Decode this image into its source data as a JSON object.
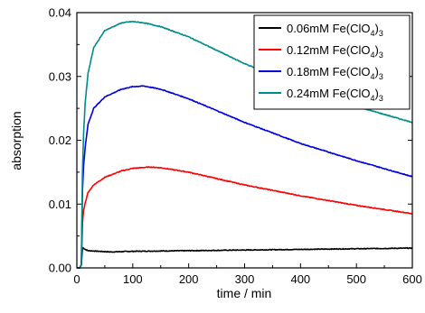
{
  "chart_data": {
    "type": "line",
    "title": "",
    "xlabel": "time / min",
    "ylabel": "absorption",
    "xlim": [
      0,
      600
    ],
    "ylim": [
      0,
      0.04
    ],
    "x_ticks": [
      0,
      100,
      200,
      300,
      400,
      500,
      600
    ],
    "x_tick_labels": [
      "0",
      "100",
      "200",
      "300",
      "400",
      "500",
      "600"
    ],
    "y_ticks": [
      0,
      0.01,
      0.02,
      0.03,
      0.04
    ],
    "y_tick_labels": [
      "0.00",
      "0.01",
      "0.02",
      "0.03",
      "0.04"
    ],
    "grid": false,
    "legend_position": "top-right",
    "series": [
      {
        "name": "0.06mM Fe(ClO4)3",
        "legend_main": "0.06mM Fe(ClO",
        "legend_sub1": "4",
        "legend_mid": ")",
        "legend_sub2": "3",
        "color": "#000000",
        "x": [
          0,
          5,
          8,
          10,
          15,
          20,
          40,
          60,
          100,
          200,
          300,
          400,
          500,
          600
        ],
        "y": [
          0,
          0,
          0.0005,
          0.0032,
          0.0029,
          0.0027,
          0.0026,
          0.0025,
          0.0026,
          0.0027,
          0.0028,
          0.0029,
          0.003,
          0.0031
        ]
      },
      {
        "name": "0.12mM Fe(ClO4)3",
        "legend_main": "0.12mM Fe(ClO",
        "legend_sub1": "4",
        "legend_mid": ")",
        "legend_sub2": "3",
        "color": "#ff0000",
        "x": [
          0,
          5,
          8,
          10,
          12,
          15,
          20,
          30,
          50,
          80,
          100,
          130,
          150,
          200,
          300,
          400,
          500,
          600
        ],
        "y": [
          0,
          0,
          0.0005,
          0.007,
          0.009,
          0.0102,
          0.0118,
          0.013,
          0.0142,
          0.0152,
          0.0156,
          0.0158,
          0.0157,
          0.015,
          0.013,
          0.0113,
          0.0098,
          0.0085
        ]
      },
      {
        "name": "0.18mM Fe(ClO4)3",
        "legend_main": "0.18mM Fe(ClO",
        "legend_sub1": "4",
        "legend_mid": ")",
        "legend_sub2": "3",
        "color": "#0000dd",
        "x": [
          0,
          5,
          8,
          10,
          12,
          15,
          20,
          30,
          50,
          80,
          100,
          120,
          150,
          200,
          300,
          400,
          500,
          600
        ],
        "y": [
          0,
          0,
          0.0005,
          0.012,
          0.016,
          0.019,
          0.0225,
          0.025,
          0.0268,
          0.028,
          0.0284,
          0.0285,
          0.028,
          0.0265,
          0.0228,
          0.0195,
          0.0168,
          0.0143
        ]
      },
      {
        "name": "0.24mM Fe(ClO4)3",
        "legend_main": "0.24mM Fe(ClO",
        "legend_sub1": "4",
        "legend_mid": ")",
        "legend_sub2": "3",
        "color": "#008b8b",
        "x": [
          0,
          5,
          8,
          10,
          12,
          15,
          20,
          30,
          50,
          80,
          100,
          120,
          150,
          200,
          300,
          400,
          500,
          600
        ],
        "y": [
          0,
          0,
          0.0005,
          0.015,
          0.021,
          0.026,
          0.0305,
          0.0345,
          0.0372,
          0.0384,
          0.0386,
          0.0384,
          0.0378,
          0.0362,
          0.032,
          0.0285,
          0.0253,
          0.0228
        ]
      }
    ]
  }
}
